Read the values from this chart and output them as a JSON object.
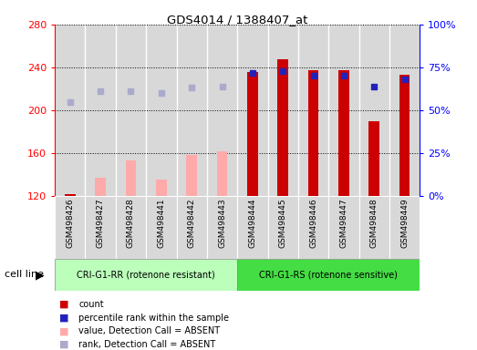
{
  "title": "GDS4014 / 1388407_at",
  "samples": [
    "GSM498426",
    "GSM498427",
    "GSM498428",
    "GSM498441",
    "GSM498442",
    "GSM498443",
    "GSM498444",
    "GSM498445",
    "GSM498446",
    "GSM498447",
    "GSM498448",
    "GSM498449"
  ],
  "group1_label": "CRI-G1-RR (rotenone resistant)",
  "group2_label": "CRI-G1-RS (rotenone sensitive)",
  "group1_count": 6,
  "group2_count": 6,
  "ylim_left": [
    120,
    280
  ],
  "ylim_right": [
    0,
    100
  ],
  "yticks_left": [
    120,
    160,
    200,
    240,
    280
  ],
  "yticks_right": [
    0,
    25,
    50,
    75,
    100
  ],
  "count_values": [
    122,
    0,
    0,
    0,
    0,
    0,
    236,
    248,
    237,
    237,
    190,
    233
  ],
  "value_absent": [
    0,
    137,
    153,
    135,
    158,
    162,
    0,
    0,
    0,
    0,
    0,
    0
  ],
  "rank_absent_pct": [
    55,
    61,
    61,
    60,
    63,
    64,
    0,
    0,
    0,
    0,
    0,
    0
  ],
  "rank_present_pct": [
    0,
    0,
    0,
    0,
    0,
    0,
    72,
    73,
    70,
    70,
    64,
    68
  ],
  "count_color": "#cc0000",
  "value_absent_color": "#ffaaaa",
  "rank_absent_color": "#aaaacc",
  "rank_present_color": "#2222bb",
  "col_bg_color": "#d8d8d8",
  "group1_bg": "#bbffbb",
  "group2_bg": "#44dd44",
  "cell_line_label": "cell line",
  "legend_items": [
    "count",
    "percentile rank within the sample",
    "value, Detection Call = ABSENT",
    "rank, Detection Call = ABSENT"
  ],
  "legend_colors": [
    "#cc0000",
    "#2222bb",
    "#ffaaaa",
    "#aaaacc"
  ]
}
